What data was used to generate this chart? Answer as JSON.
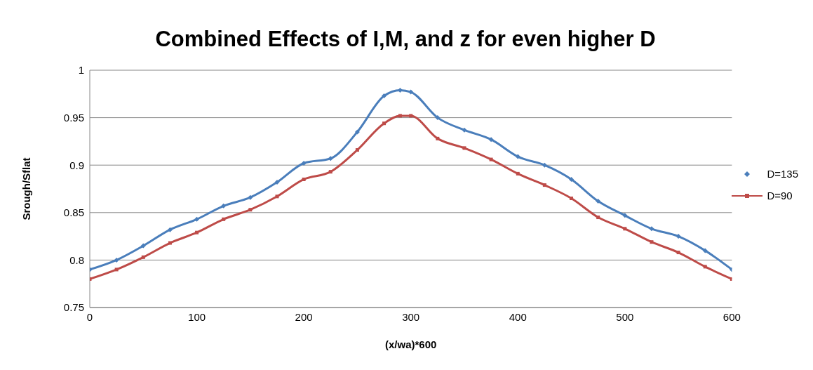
{
  "chart_data": {
    "type": "line",
    "title": "Combined Effects of I,M, and z for even higher D",
    "xlabel": "(x/wa)*600",
    "ylabel": "Srough/Sflat",
    "x": [
      0,
      25,
      50,
      75,
      100,
      125,
      150,
      175,
      200,
      225,
      250,
      275,
      290,
      300,
      325,
      350,
      375,
      400,
      425,
      450,
      475,
      500,
      525,
      550,
      575,
      600
    ],
    "series": [
      {
        "name": "D=135",
        "color": "#4a7ebb",
        "marker": "diamond",
        "values": [
          0.79,
          0.8,
          0.815,
          0.832,
          0.843,
          0.857,
          0.866,
          0.882,
          0.902,
          0.907,
          0.935,
          0.973,
          0.979,
          0.977,
          0.95,
          0.937,
          0.927,
          0.909,
          0.9,
          0.885,
          0.862,
          0.847,
          0.833,
          0.825,
          0.81,
          0.79
        ]
      },
      {
        "name": "D=90",
        "color": "#be4b48",
        "marker": "square",
        "values": [
          0.78,
          0.79,
          0.803,
          0.818,
          0.829,
          0.843,
          0.853,
          0.867,
          0.885,
          0.893,
          0.916,
          0.944,
          0.952,
          0.952,
          0.928,
          0.918,
          0.906,
          0.891,
          0.879,
          0.865,
          0.845,
          0.833,
          0.819,
          0.808,
          0.793,
          0.78
        ]
      }
    ],
    "xlim": [
      0,
      600
    ],
    "xticks": [
      0,
      100,
      200,
      300,
      400,
      500,
      600
    ],
    "ylim": [
      0.75,
      1
    ],
    "yticks": [
      0.75,
      0.8,
      0.85,
      0.9,
      0.95,
      1
    ],
    "grid": "y",
    "legend": "right"
  }
}
